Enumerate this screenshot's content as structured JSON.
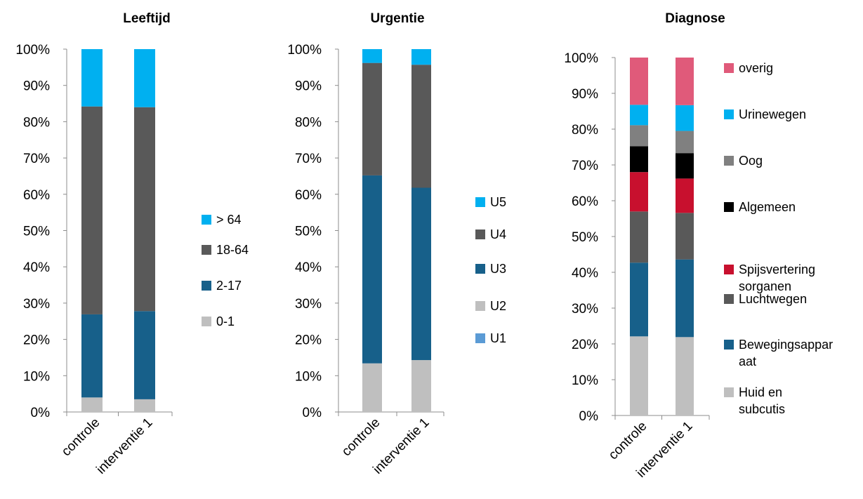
{
  "chart_data": [
    {
      "type": "bar",
      "stacked": true,
      "title": "Leeftijd",
      "categories": [
        "controle",
        "interventie 1"
      ],
      "ylim": [
        0,
        100
      ],
      "yticks": [
        "0%",
        "10%",
        "20%",
        "30%",
        "40%",
        "50%",
        "60%",
        "70%",
        "80%",
        "90%",
        "100%"
      ],
      "grid": false,
      "legend": "right",
      "series": [
        {
          "name": "0-1",
          "color": "#BFBFBF",
          "values": [
            4,
            3.5
          ]
        },
        {
          "name": "2-17",
          "color": "#17608A",
          "values": [
            22.9,
            24.3
          ]
        },
        {
          "name": "18-64",
          "color": "#595959",
          "values": [
            57.3,
            56.2
          ]
        },
        {
          "name": "> 64",
          "color": "#00B0F0",
          "values": [
            15.8,
            16
          ]
        }
      ]
    },
    {
      "type": "bar",
      "stacked": true,
      "title": "Urgentie",
      "categories": [
        "controle",
        "interventie 1"
      ],
      "ylim": [
        0,
        100
      ],
      "yticks": [
        "0%",
        "10%",
        "20%",
        "30%",
        "40%",
        "50%",
        "60%",
        "70%",
        "80%",
        "90%",
        "100%"
      ],
      "grid": false,
      "legend": "right",
      "series": [
        {
          "name": "U1",
          "color": "#5B9BD5",
          "values": [
            0,
            0
          ]
        },
        {
          "name": "U2",
          "color": "#BFBFBF",
          "values": [
            13.4,
            14.3
          ]
        },
        {
          "name": "U3",
          "color": "#17608A",
          "values": [
            51.8,
            47.5
          ]
        },
        {
          "name": "U4",
          "color": "#595959",
          "values": [
            31,
            33.9
          ]
        },
        {
          "name": "U5",
          "color": "#00B0F0",
          "values": [
            3.8,
            4.3
          ]
        }
      ]
    },
    {
      "type": "bar",
      "stacked": true,
      "title": "Diagnose",
      "categories": [
        "controle",
        "interventie 1"
      ],
      "ylim": [
        0,
        100
      ],
      "yticks": [
        "0%",
        "10%",
        "20%",
        "30%",
        "40%",
        "50%",
        "60%",
        "70%",
        "80%",
        "90%",
        "100%"
      ],
      "grid": false,
      "legend": "right",
      "series": [
        {
          "name": "Huid en subcutis",
          "color": "#BFBFBF",
          "values": [
            22.1,
            21.9
          ]
        },
        {
          "name": "Bewegingsapparaat",
          "color": "#17608A",
          "values": [
            20.6,
            21.7
          ]
        },
        {
          "name": "Luchtwegen",
          "color": "#595959",
          "values": [
            14.3,
            13.0
          ]
        },
        {
          "name": "Spijsverteringsorganen",
          "color": "#C8102E",
          "values": [
            11.0,
            9.6
          ]
        },
        {
          "name": "Algemeen",
          "color": "#000000",
          "values": [
            7.2,
            7.1
          ]
        },
        {
          "name": "Oog",
          "color": "#808080",
          "values": [
            5.9,
            6.2
          ]
        },
        {
          "name": "Urinewegen",
          "color": "#00B0F0",
          "values": [
            5.7,
            7.2
          ]
        },
        {
          "name": "overig",
          "color": "#E05A7A",
          "values": [
            13.2,
            13.3
          ]
        }
      ]
    }
  ]
}
